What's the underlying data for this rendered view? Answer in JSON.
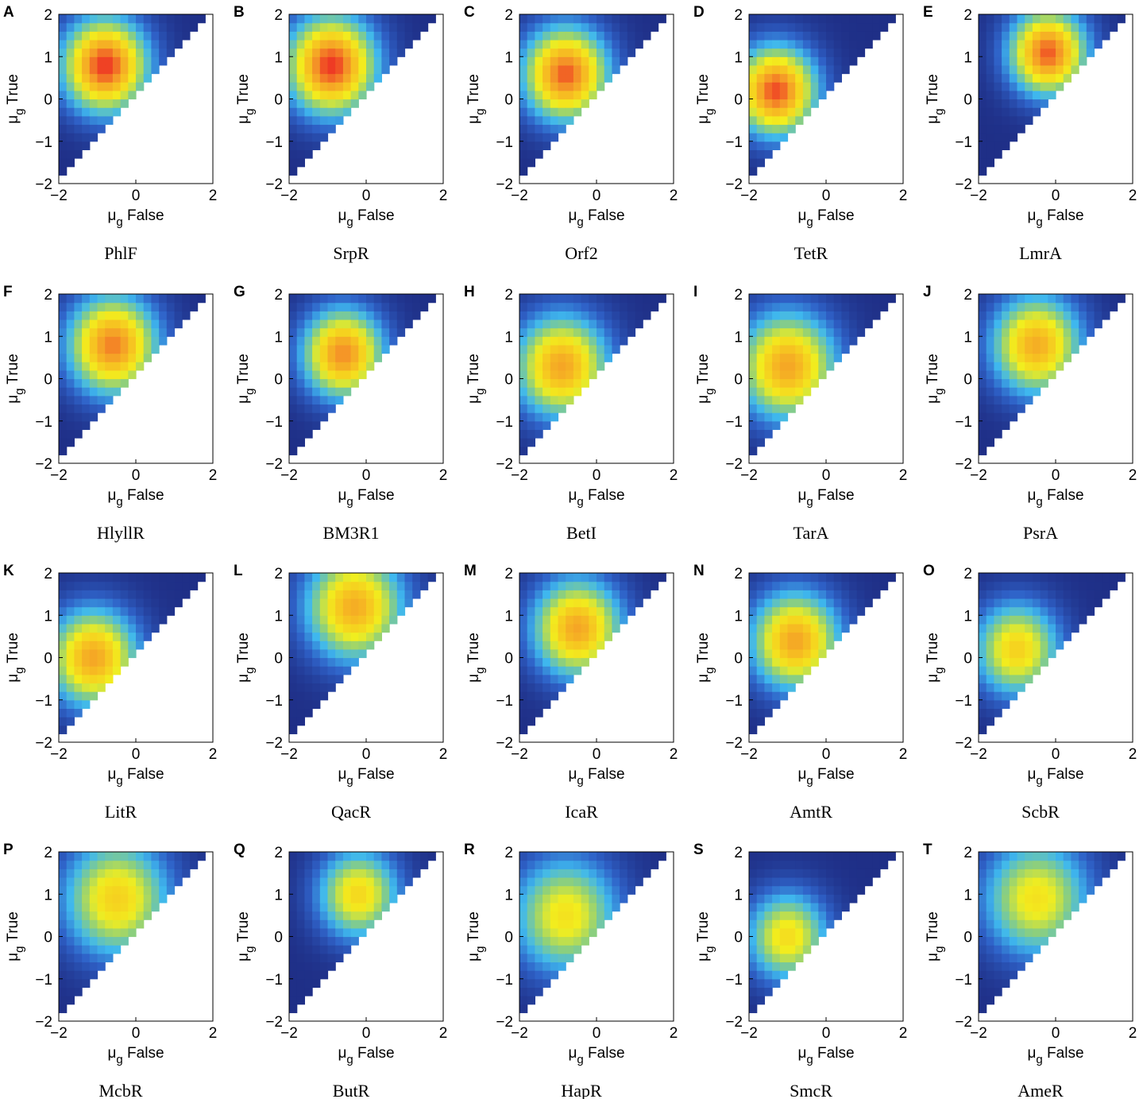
{
  "chart_data": {
    "type": "heatmap",
    "panels": [
      {
        "letter": "A",
        "name": "PhlF",
        "peak": [
          -0.8,
          0.8
        ],
        "amp": 1.0,
        "sigma": 1.05
      },
      {
        "letter": "B",
        "name": "SrpR",
        "peak": [
          -0.9,
          0.8
        ],
        "amp": 1.0,
        "sigma": 1.1
      },
      {
        "letter": "C",
        "name": "Orf2",
        "peak": [
          -0.8,
          0.6
        ],
        "amp": 0.95,
        "sigma": 1.05
      },
      {
        "letter": "D",
        "name": "TetR",
        "peak": [
          -1.3,
          0.2
        ],
        "amp": 0.97,
        "sigma": 1.0
      },
      {
        "letter": "E",
        "name": "LmrA",
        "peak": [
          -0.2,
          1.1
        ],
        "amp": 0.95,
        "sigma": 0.95
      },
      {
        "letter": "F",
        "name": "HlyllR",
        "peak": [
          -0.6,
          0.8
        ],
        "amp": 0.9,
        "sigma": 1.1
      },
      {
        "letter": "G",
        "name": "BM3R1",
        "peak": [
          -0.6,
          0.6
        ],
        "amp": 0.88,
        "sigma": 1.0
      },
      {
        "letter": "H",
        "name": "BetI",
        "peak": [
          -0.9,
          0.3
        ],
        "amp": 0.82,
        "sigma": 1.15
      },
      {
        "letter": "I",
        "name": "TarA",
        "peak": [
          -1.0,
          0.3
        ],
        "amp": 0.82,
        "sigma": 1.2
      },
      {
        "letter": "J",
        "name": "PsrA",
        "peak": [
          -0.5,
          0.8
        ],
        "amp": 0.8,
        "sigma": 1.1
      },
      {
        "letter": "K",
        "name": "LitR",
        "peak": [
          -1.1,
          0.0
        ],
        "amp": 0.82,
        "sigma": 1.1
      },
      {
        "letter": "L",
        "name": "QacR",
        "peak": [
          -0.3,
          1.2
        ],
        "amp": 0.8,
        "sigma": 1.2
      },
      {
        "letter": "M",
        "name": "IcaR",
        "peak": [
          -0.5,
          0.7
        ],
        "amp": 0.82,
        "sigma": 1.1
      },
      {
        "letter": "N",
        "name": "AmtR",
        "peak": [
          -0.8,
          0.4
        ],
        "amp": 0.82,
        "sigma": 1.1
      },
      {
        "letter": "O",
        "name": "ScbR",
        "peak": [
          -1.0,
          0.2
        ],
        "amp": 0.68,
        "sigma": 1.05
      },
      {
        "letter": "P",
        "name": "McbR",
        "peak": [
          -0.5,
          0.9
        ],
        "amp": 0.68,
        "sigma": 1.3
      },
      {
        "letter": "Q",
        "name": "ButR",
        "peak": [
          -0.2,
          1.0
        ],
        "amp": 0.66,
        "sigma": 1.0
      },
      {
        "letter": "R",
        "name": "HapR",
        "peak": [
          -0.8,
          0.5
        ],
        "amp": 0.62,
        "sigma": 1.3
      },
      {
        "letter": "S",
        "name": "SmcR",
        "peak": [
          -1.0,
          0.0
        ],
        "amp": 0.64,
        "sigma": 1.0
      },
      {
        "letter": "T",
        "name": "AmeR",
        "peak": [
          -0.5,
          0.9
        ],
        "amp": 0.62,
        "sigma": 1.3
      }
    ],
    "grid_step": 0.2,
    "xlabel_main": "μ",
    "xlabel_sub": "g",
    "xlabel_rest": " False",
    "ylabel_main": "μ",
    "ylabel_sub": "g",
    "ylabel_rest": " True",
    "xlim": [
      -2,
      2
    ],
    "ylim": [
      -2,
      2
    ],
    "xticks": [
      "−2",
      "0",
      "2"
    ],
    "yticks": [
      "2",
      "1",
      "0",
      "−1",
      "−2"
    ],
    "colormap": [
      "#1f2f87",
      "#2f62c8",
      "#3fb8ee",
      "#8fd07a",
      "#f2ee1e",
      "#f6c820",
      "#f59a27",
      "#ee3524"
    ]
  }
}
